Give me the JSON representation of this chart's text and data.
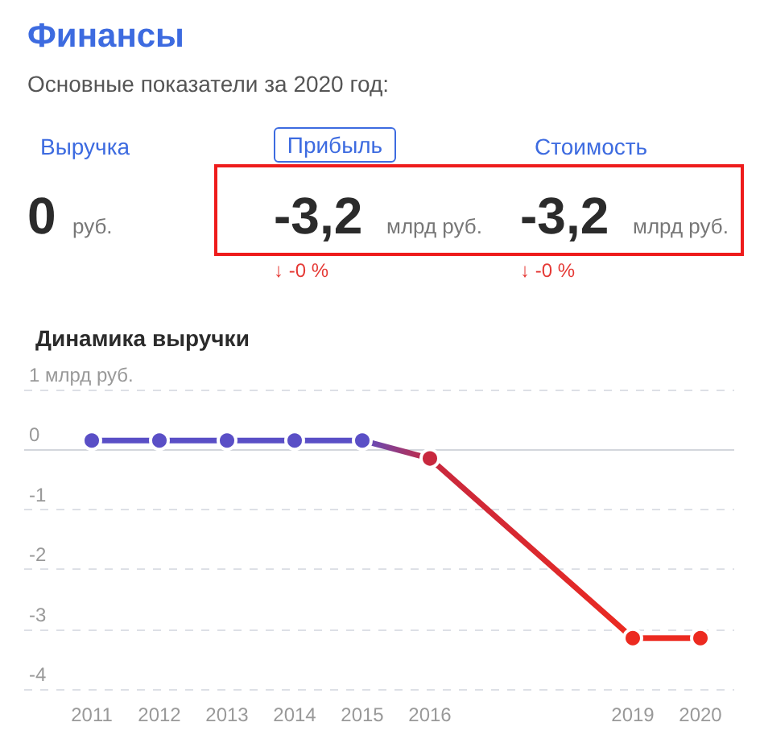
{
  "chart_data": [
    {
      "type": "other",
      "title": "Финансы",
      "subtitle": "Основные показатели за 2020 год:",
      "annotations": [
        "Выручка",
        "Прибыль",
        "Стоимость",
        "0",
        "руб.",
        "-3,2",
        "млрд руб.",
        "-3,2",
        "млрд руб.",
        "↓ -0 %",
        "↓ -0 %"
      ]
    },
    {
      "type": "line",
      "title": "Динамика выручки",
      "x": [
        2011,
        2012,
        2013,
        2014,
        2015,
        2016,
        2019,
        2020
      ],
      "series": [
        {
          "values": [
            0.15,
            0.15,
            0.15,
            0.15,
            0.15,
            -0.15,
            -3.15,
            -3.15
          ],
          "colors": [
            "#5a4fc6",
            "#5a4fc6",
            "#5a4fc6",
            "#5a4fc6",
            "#5a4fc6",
            "#c8283e",
            "#ec2a20",
            "#ec2a20"
          ]
        }
      ],
      "xlim": [
        2010,
        2020.5
      ],
      "xticks": [
        2011,
        2012,
        2013,
        2014,
        2015,
        2016,
        2019,
        2020
      ],
      "ylim": [
        -4,
        1
      ],
      "yticks": [
        {
          "value": 1,
          "label": "1 млрд руб."
        },
        0,
        -1,
        -2,
        -3,
        -4
      ],
      "grid": "y",
      "marker": "circle",
      "line_style": "solid",
      "ref_lines": [
        {
          "axis": "y",
          "value": 0,
          "color": "#d3d6dc",
          "line_style": "solid"
        }
      ]
    }
  ]
}
